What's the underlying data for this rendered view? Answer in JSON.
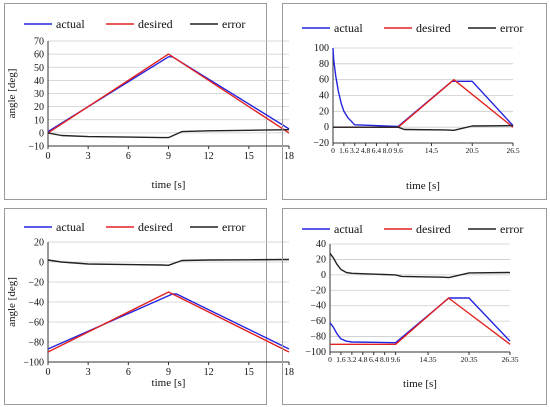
{
  "chart_data": [
    {
      "type": "line",
      "xlabel": "time [s]",
      "ylabel": "angle [deg]",
      "xlim": [
        0,
        18
      ],
      "ylim": [
        -10,
        70
      ],
      "xticks": [
        0,
        3,
        6,
        9,
        12,
        15,
        18
      ],
      "xtick_labels": [
        "0",
        "3",
        "6",
        "9",
        "12",
        "15",
        "18"
      ],
      "yticks": [
        -10,
        0,
        10,
        20,
        30,
        40,
        50,
        60,
        70
      ],
      "ytick_labels": [
        "−10",
        "0",
        "10",
        "20",
        "30",
        "40",
        "50",
        "60",
        "70"
      ],
      "legend": "top",
      "grid": "horizontal",
      "series": [
        {
          "name": "actual",
          "color": "#2323e0",
          "x": [
            0,
            9,
            9.3,
            18
          ],
          "y": [
            1,
            58,
            58,
            3
          ]
        },
        {
          "name": "desired",
          "color": "#e22222",
          "x": [
            0,
            9,
            18
          ],
          "y": [
            0,
            60,
            0
          ]
        },
        {
          "name": "error",
          "color": "#222222",
          "x": [
            0,
            1,
            3,
            6,
            8.5,
            9,
            10,
            12,
            15,
            18
          ],
          "y": [
            0,
            -2,
            -2.8,
            -3.2,
            -3.6,
            -3.6,
            1,
            1.6,
            2,
            2.4
          ]
        }
      ]
    },
    {
      "type": "line",
      "xlabel": "time [s]",
      "ylabel": "",
      "xlim": [
        0,
        26.5
      ],
      "ylim": [
        -20,
        100
      ],
      "xticks": [
        0,
        1.6,
        3.2,
        4.8,
        6.4,
        8.0,
        9.6,
        14.5,
        20.5,
        26.5
      ],
      "xtick_labels": [
        "0",
        "1.6",
        "3.2",
        "4.8",
        "6.4",
        "8.0",
        "9.6",
        "14.5",
        "20.5",
        "26.5"
      ],
      "yticks": [
        -20,
        0,
        20,
        40,
        60,
        80,
        100
      ],
      "ytick_labels": [
        "−20",
        "0",
        "20",
        "40",
        "60",
        "80",
        "100"
      ],
      "legend": "top",
      "grid": "horizontal",
      "series": [
        {
          "name": "actual",
          "color": "#2323e0",
          "x": [
            0,
            0.1,
            0.4,
            0.8,
            1.2,
            1.6,
            2.2,
            3.2,
            9.6,
            17.5,
            20.5,
            26.5
          ],
          "y": [
            100,
            85,
            65,
            45,
            30,
            20,
            12,
            3,
            1,
            58,
            58,
            2
          ]
        },
        {
          "name": "desired",
          "color": "#e22222",
          "x": [
            0,
            9.6,
            17.8,
            26.5
          ],
          "y": [
            0,
            0,
            60,
            0
          ]
        },
        {
          "name": "error",
          "color": "#222222",
          "x": [
            0,
            9.6,
            10.5,
            16.5,
            17.8,
            20.5,
            26.5
          ],
          "y": [
            0,
            0,
            -3,
            -3.5,
            -4,
            1.5,
            2
          ]
        }
      ]
    },
    {
      "type": "line",
      "xlabel": "time [s]",
      "ylabel": "angle [deg]",
      "xlim": [
        0,
        18
      ],
      "ylim": [
        -100,
        20
      ],
      "xticks": [
        0,
        3,
        6,
        9,
        12,
        15,
        18
      ],
      "xtick_labels": [
        "0",
        "3",
        "6",
        "9",
        "12",
        "15",
        "18"
      ],
      "yticks": [
        -100,
        -80,
        -60,
        -40,
        -20,
        0,
        20
      ],
      "ytick_labels": [
        "−100",
        "−80",
        "−60",
        "−40",
        "−20",
        "0",
        "20"
      ],
      "legend": "top",
      "grid": "horizontal",
      "series": [
        {
          "name": "actual",
          "color": "#2323e0",
          "x": [
            0,
            9.3,
            9.6,
            18
          ],
          "y": [
            -87,
            -32,
            -32,
            -87
          ]
        },
        {
          "name": "desired",
          "color": "#e22222",
          "x": [
            0,
            9,
            18
          ],
          "y": [
            -90,
            -30,
            -90
          ]
        },
        {
          "name": "error",
          "color": "#222222",
          "x": [
            0,
            1,
            3,
            6,
            8.5,
            9,
            10,
            12,
            15,
            18
          ],
          "y": [
            2,
            0,
            -2,
            -2.6,
            -3,
            -3.3,
            1.5,
            2,
            2.2,
            2.5
          ]
        }
      ]
    },
    {
      "type": "line",
      "xlabel": "time [s]",
      "ylabel": "",
      "xlim": [
        0,
        26.35
      ],
      "ylim": [
        -100,
        40
      ],
      "xticks": [
        0,
        1.6,
        3.2,
        4.8,
        6.4,
        8.0,
        9.6,
        14.35,
        20.35,
        26.35
      ],
      "xtick_labels": [
        "0",
        "1.6",
        "3.2",
        "4.8",
        "6.4",
        "8.0",
        "9.6",
        "14.35",
        "20.35",
        "26.35"
      ],
      "yticks": [
        -100,
        -80,
        -60,
        -40,
        -20,
        0,
        20,
        40
      ],
      "ytick_labels": [
        "−100",
        "−80",
        "−60",
        "−40",
        "−20",
        "0",
        "20",
        "40"
      ],
      "legend": "top",
      "grid": "horizontal",
      "series": [
        {
          "name": "actual",
          "color": "#2323e0",
          "x": [
            0,
            0.5,
            1.0,
            1.6,
            2.4,
            3.2,
            9.6,
            17.4,
            20.35,
            26.35
          ],
          "y": [
            -62,
            -68,
            -76,
            -83,
            -86,
            -87,
            -88,
            -30,
            -30,
            -86
          ]
        },
        {
          "name": "desired",
          "color": "#e22222",
          "x": [
            0,
            9.6,
            17.35,
            26.35
          ],
          "y": [
            -90,
            -90,
            -30,
            -90
          ]
        },
        {
          "name": "error",
          "color": "#222222",
          "x": [
            0,
            0.5,
            1.0,
            1.6,
            2.4,
            3.2,
            9.6,
            10.5,
            16.5,
            17.4,
            20.35,
            26.35
          ],
          "y": [
            28,
            22,
            14,
            7,
            3,
            2,
            0,
            -2,
            -3,
            -3.5,
            2.5,
            3
          ]
        }
      ]
    }
  ]
}
